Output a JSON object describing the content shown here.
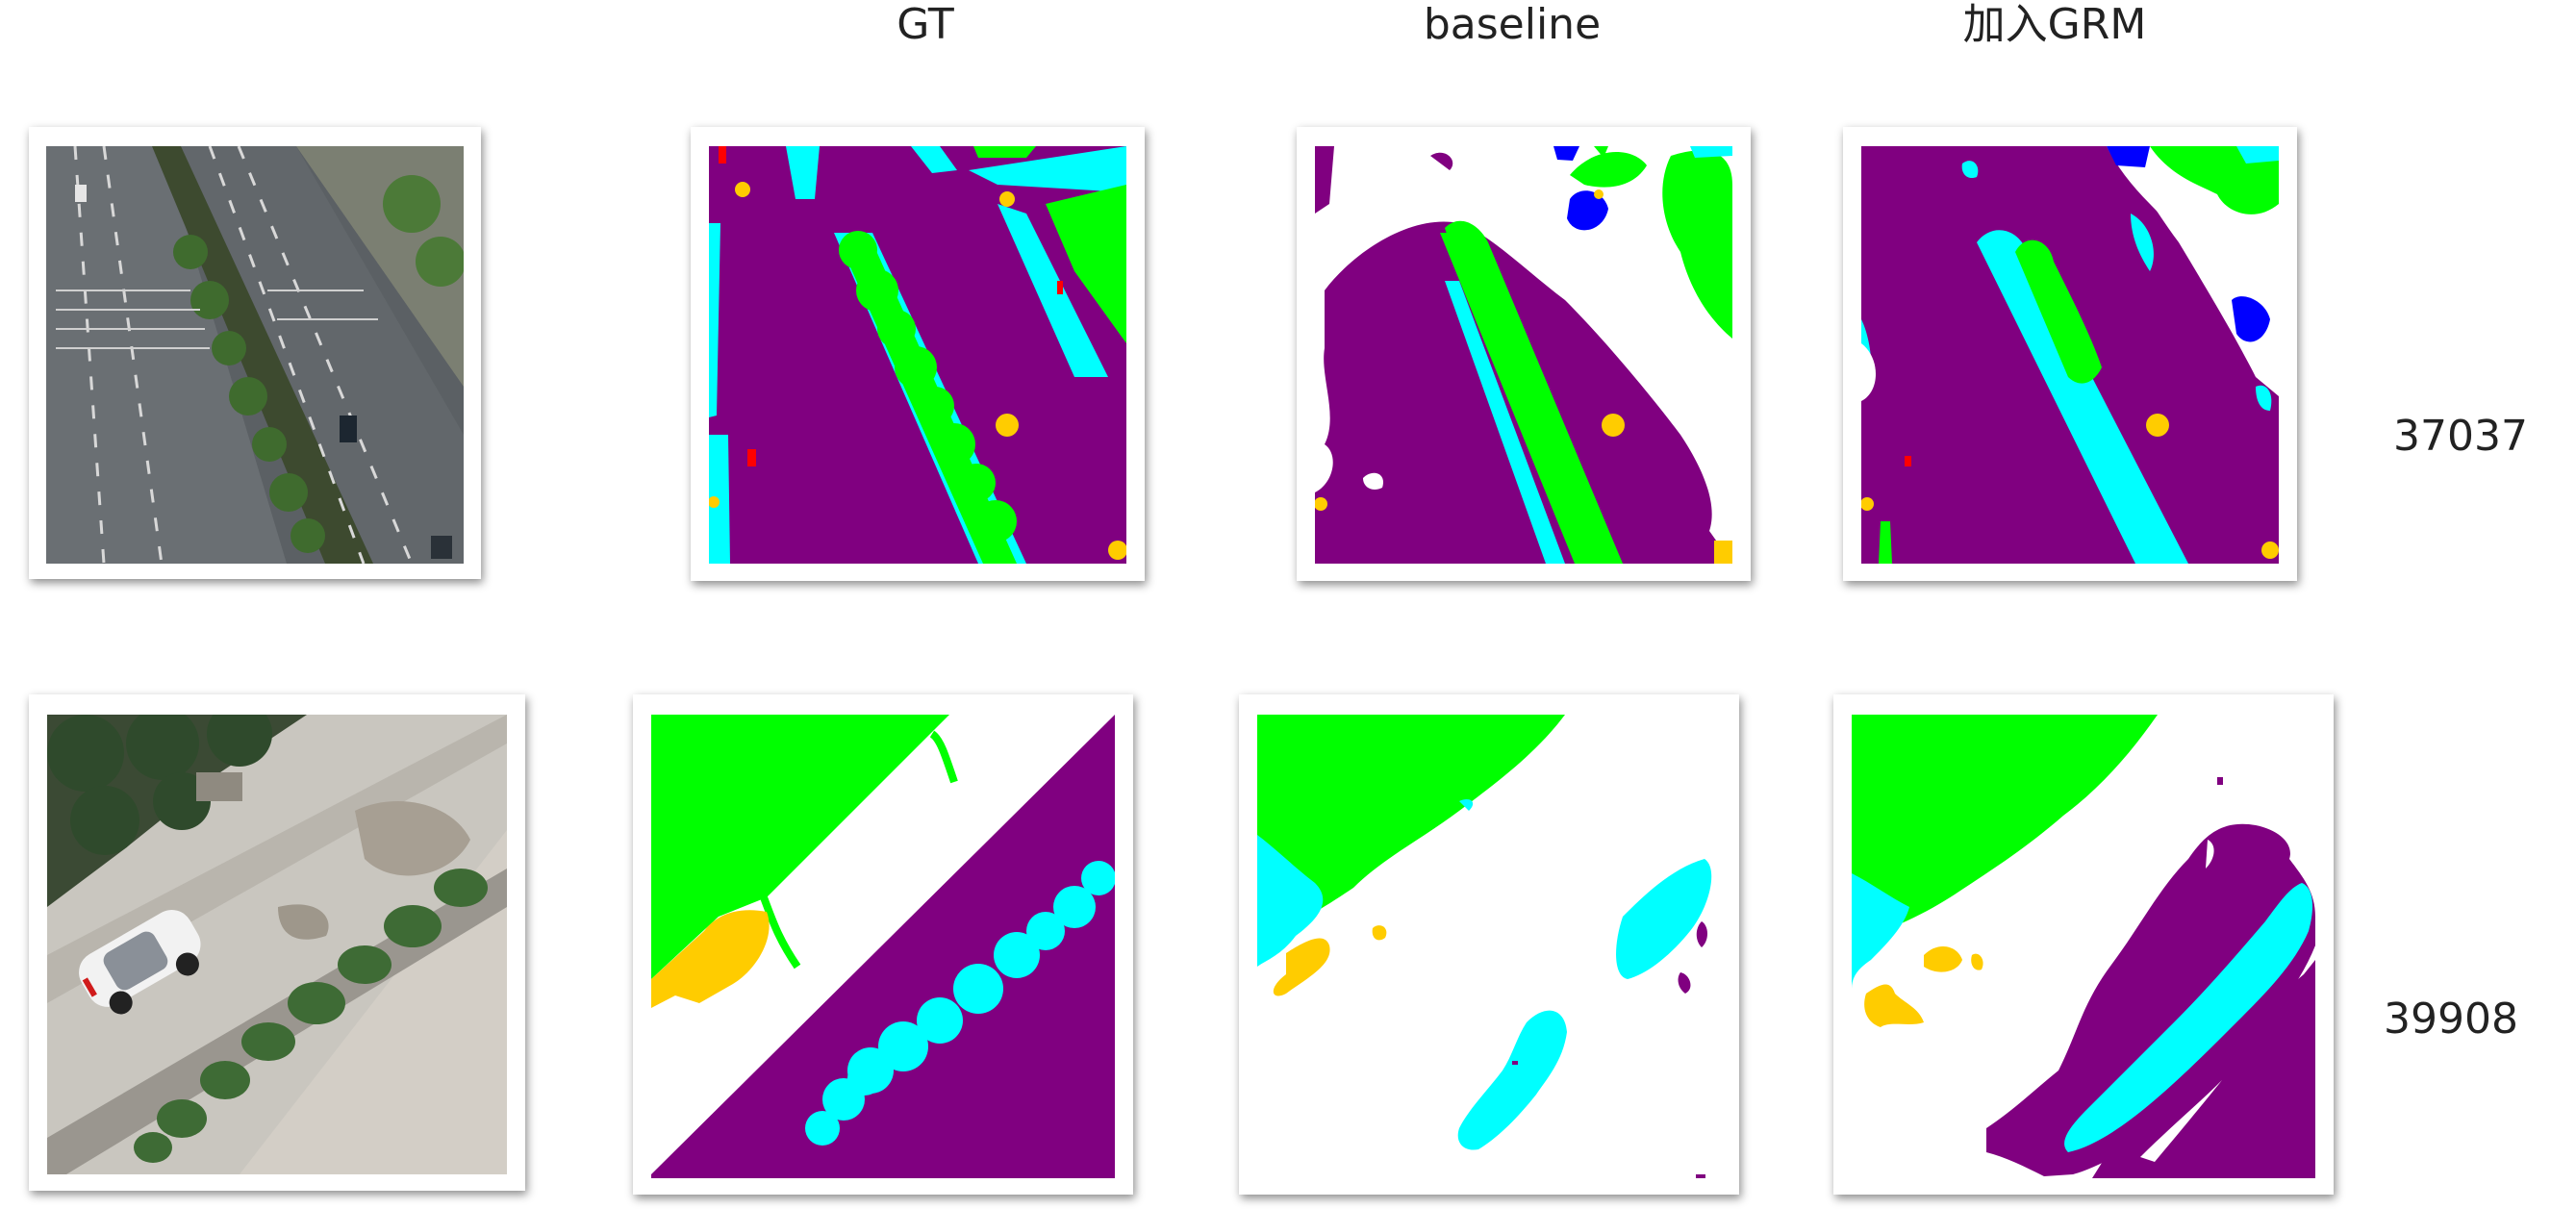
{
  "columns": {
    "gt": "GT",
    "baseline": "baseline",
    "grm": "加入GRM"
  },
  "rows": [
    {
      "id": "37037"
    },
    {
      "id": "39908"
    }
  ],
  "colors": {
    "road": "#800080",
    "sidewalk": "#00ffff",
    "vegetation": "#00ff00",
    "vehicle": "#0000ff",
    "object": "#ffcc00",
    "marker": "#ff0000",
    "background": "#ffffff"
  }
}
